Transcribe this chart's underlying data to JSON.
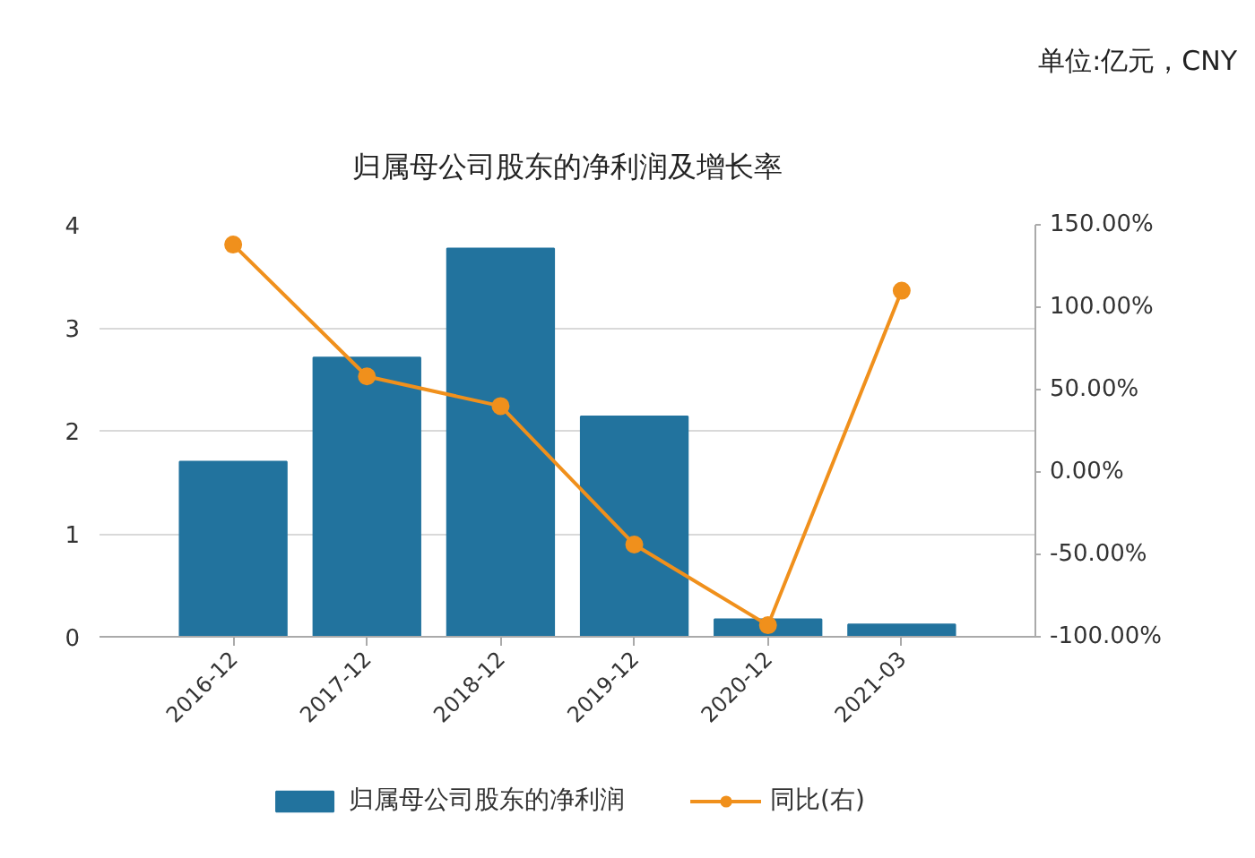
{
  "chart_data": {
    "type": "bar",
    "title": "归属母公司股东的净利润及增长率",
    "annotations": [
      "单位:亿元，CNY"
    ],
    "categories": [
      "2016-12",
      "2017-12",
      "2018-12",
      "2019-12",
      "2020-12",
      "2021-03"
    ],
    "series": [
      {
        "name": "归属母公司股东的净利润",
        "color": "#22739e",
        "values": [
          1.7,
          2.71,
          3.77,
          2.14,
          0.17,
          0.12
        ]
      },
      {
        "name": "同比(右)",
        "type": "line",
        "axis": "y2",
        "color": "#f0901c",
        "marker": "circle",
        "values": [
          138,
          58,
          40,
          -44,
          -93,
          110
        ]
      }
    ],
    "ylim": [
      0,
      4
    ],
    "yticks": [
      0,
      1,
      2,
      3,
      4
    ],
    "y2lim": [
      -100,
      150
    ],
    "y2ticks": [
      {
        "value": 150,
        "label": "150.00%"
      },
      {
        "value": 100,
        "label": "100.00%"
      },
      {
        "value": 50,
        "label": "50.00%"
      },
      {
        "value": 0,
        "label": "0.00%"
      },
      {
        "value": -50,
        "label": "-50.00%"
      },
      {
        "value": -100,
        "label": "-100.00%"
      }
    ],
    "grid": "y",
    "legend": "bottom"
  }
}
